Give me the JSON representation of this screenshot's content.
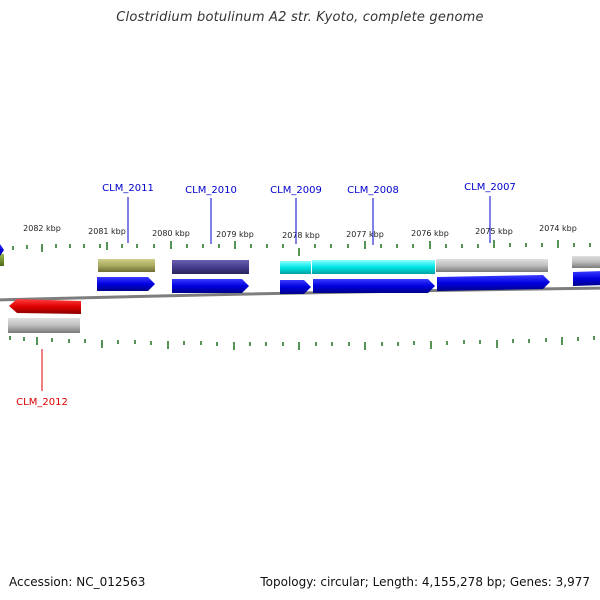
{
  "title": "Clostridium botulinum A2 str. Kyoto, complete genome",
  "footer": {
    "accession": "Accession: NC_012563",
    "summary": "Topology: circular; Length: 4,155,278 bp; Genes: 3,977"
  },
  "ruler": {
    "labels": [
      "2082 kbp",
      "2081 kbp",
      "2080 kbp",
      "2079 kbp",
      "2078 kbp",
      "2077 kbp",
      "2076 kbp",
      "2075 kbp",
      "2074 kbp"
    ]
  },
  "genes": [
    {
      "label": "CLM_2011",
      "color": "#0000cc"
    },
    {
      "label": "CLM_2010",
      "color": "#0000cc"
    },
    {
      "label": "CLM_2009",
      "color": "#0000cc"
    },
    {
      "label": "CLM_2008",
      "color": "#0000cc"
    },
    {
      "label": "CLM_2007",
      "color": "#0000cc"
    },
    {
      "label": "CLM_2012",
      "color": "#dd0000"
    }
  ],
  "colors": {
    "forward_cds": "#0000ee",
    "reverse_cds": "#ee0000",
    "tick": "#2a7a2a",
    "backbone": "#888888"
  }
}
